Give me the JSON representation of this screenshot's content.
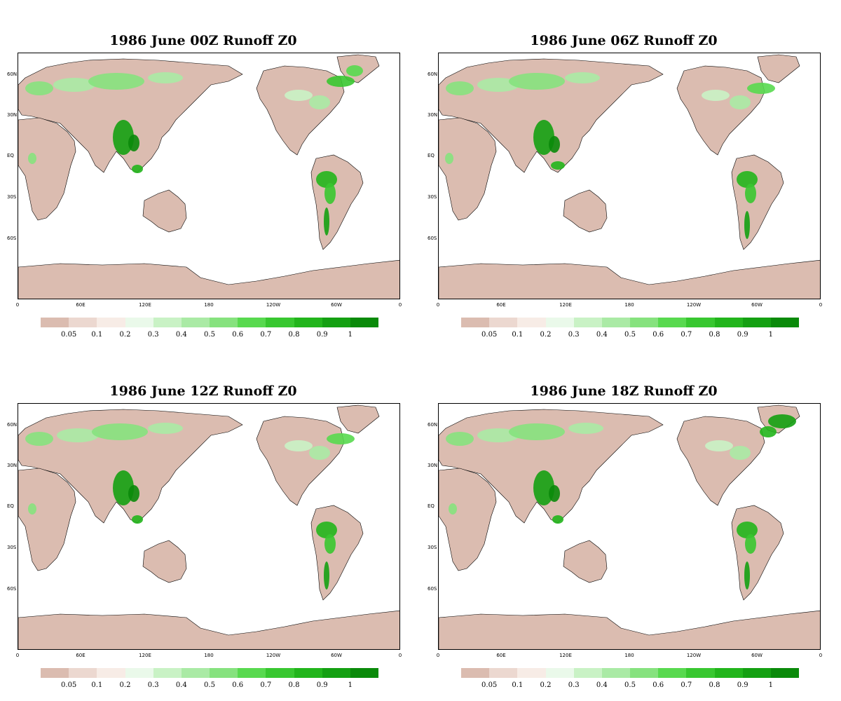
{
  "panels": [
    {
      "title": "1986 June 00Z Runoff Z0"
    },
    {
      "title": "1986  June 06Z Runoff Z0"
    },
    {
      "title": "1986  June 12Z Runoff Z0"
    },
    {
      "title": "1986  June 18Z Runoff Z0"
    }
  ],
  "axes": {
    "lat_labels": [
      "60N",
      "30N",
      "EQ",
      "30S",
      "60S"
    ],
    "lon_labels": [
      "0",
      "60E",
      "120E",
      "180",
      "120W",
      "60W",
      "0"
    ]
  },
  "colorbar": {
    "labels": [
      "0.05",
      "0.1",
      "0.2",
      "0.3",
      "0.4",
      "0.5",
      "0.6",
      "0.7",
      "0.8",
      "0.9",
      "1"
    ],
    "colors": [
      "#dbbcb0",
      "#ecd8d0",
      "#f7ece6",
      "#eaf9ea",
      "#c9f2c5",
      "#aaeaa5",
      "#86e27e",
      "#58d94f",
      "#38c730",
      "#22b51c",
      "#14a012",
      "#0a8a0a"
    ]
  },
  "colors": {
    "land_dry": "#dbbcb0",
    "land_wet": "#58d94f",
    "land_very_wet": "#14a012",
    "ocean": "#ffffff"
  }
}
